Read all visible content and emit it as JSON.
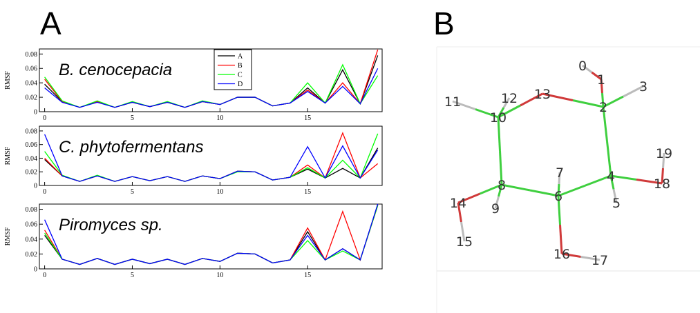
{
  "panel_labels": {
    "a": "A",
    "b": "B"
  },
  "chart_data": [
    {
      "type": "line",
      "title": "B. cenocepacia",
      "ylabel": "RMSF",
      "x": [
        0,
        1,
        2,
        3,
        4,
        5,
        6,
        7,
        8,
        9,
        10,
        11,
        12,
        13,
        14,
        15,
        16,
        17,
        18,
        19
      ],
      "xlim": [
        -0.3,
        19.25
      ],
      "xticks": [
        0,
        5,
        10,
        15
      ],
      "ylim": [
        0,
        0.087
      ],
      "yticks": [
        0,
        0.02,
        0.04,
        0.06,
        0.08
      ],
      "legend": "top-center",
      "series": [
        {
          "name": "A",
          "color": "#000000",
          "values": [
            0.038,
            0.014,
            0.006,
            0.014,
            0.006,
            0.013,
            0.007,
            0.013,
            0.006,
            0.014,
            0.01,
            0.02,
            0.02,
            0.008,
            0.012,
            0.033,
            0.012,
            0.058,
            0.011,
            0.078
          ]
        },
        {
          "name": "B",
          "color": "#ff0000",
          "values": [
            0.045,
            0.014,
            0.006,
            0.014,
            0.006,
            0.013,
            0.007,
            0.013,
            0.006,
            0.014,
            0.01,
            0.02,
            0.02,
            0.008,
            0.012,
            0.03,
            0.012,
            0.04,
            0.011,
            0.086
          ]
        },
        {
          "name": "C",
          "color": "#00ff00",
          "values": [
            0.048,
            0.015,
            0.006,
            0.015,
            0.006,
            0.014,
            0.007,
            0.014,
            0.006,
            0.015,
            0.01,
            0.02,
            0.02,
            0.008,
            0.012,
            0.04,
            0.012,
            0.065,
            0.011,
            0.05
          ]
        },
        {
          "name": "D",
          "color": "#0000ff",
          "values": [
            0.033,
            0.013,
            0.006,
            0.013,
            0.006,
            0.013,
            0.007,
            0.013,
            0.006,
            0.014,
            0.01,
            0.02,
            0.02,
            0.008,
            0.012,
            0.028,
            0.012,
            0.035,
            0.011,
            0.06
          ]
        }
      ]
    },
    {
      "type": "line",
      "title": "C. phytofermentans",
      "ylabel": "RMSF",
      "x": [
        0,
        1,
        2,
        3,
        4,
        5,
        6,
        7,
        8,
        9,
        10,
        11,
        12,
        13,
        14,
        15,
        16,
        17,
        18,
        19
      ],
      "xlim": [
        -0.3,
        19.25
      ],
      "xticks": [
        0,
        5,
        10,
        15
      ],
      "ylim": [
        0,
        0.087
      ],
      "yticks": [
        0,
        0.02,
        0.04,
        0.06,
        0.08
      ],
      "series": [
        {
          "color": "#000000",
          "values": [
            0.038,
            0.014,
            0.006,
            0.014,
            0.006,
            0.013,
            0.007,
            0.013,
            0.006,
            0.014,
            0.01,
            0.021,
            0.02,
            0.008,
            0.012,
            0.024,
            0.011,
            0.025,
            0.011,
            0.055
          ]
        },
        {
          "color": "#ff0000",
          "values": [
            0.04,
            0.014,
            0.006,
            0.014,
            0.006,
            0.013,
            0.007,
            0.013,
            0.006,
            0.014,
            0.01,
            0.021,
            0.02,
            0.008,
            0.012,
            0.03,
            0.011,
            0.077,
            0.011,
            0.032
          ]
        },
        {
          "color": "#00ff00",
          "values": [
            0.05,
            0.015,
            0.006,
            0.015,
            0.006,
            0.013,
            0.007,
            0.013,
            0.006,
            0.014,
            0.01,
            0.02,
            0.02,
            0.008,
            0.012,
            0.026,
            0.011,
            0.037,
            0.011,
            0.076
          ]
        },
        {
          "color": "#0000ff",
          "values": [
            0.075,
            0.014,
            0.006,
            0.014,
            0.006,
            0.013,
            0.007,
            0.013,
            0.006,
            0.014,
            0.01,
            0.021,
            0.02,
            0.008,
            0.012,
            0.057,
            0.011,
            0.058,
            0.011,
            0.052
          ]
        }
      ]
    },
    {
      "type": "line",
      "title": "Piromyces sp.",
      "ylabel": "RMSF",
      "x": [
        0,
        1,
        2,
        3,
        4,
        5,
        6,
        7,
        8,
        9,
        10,
        11,
        12,
        13,
        14,
        15,
        16,
        17,
        18,
        19
      ],
      "xlim": [
        -0.3,
        19.25
      ],
      "xticks": [
        0,
        5,
        10,
        15
      ],
      "ylim": [
        0,
        0.087
      ],
      "yticks": [
        0,
        0.02,
        0.04,
        0.06,
        0.08
      ],
      "series": [
        {
          "color": "#000000",
          "values": [
            0.045,
            0.013,
            0.006,
            0.014,
            0.006,
            0.013,
            0.007,
            0.013,
            0.006,
            0.014,
            0.01,
            0.021,
            0.02,
            0.008,
            0.012,
            0.05,
            0.012,
            0.027,
            0.012,
            0.086
          ]
        },
        {
          "color": "#ff0000",
          "values": [
            0.052,
            0.013,
            0.006,
            0.014,
            0.006,
            0.013,
            0.007,
            0.013,
            0.006,
            0.014,
            0.01,
            0.021,
            0.02,
            0.008,
            0.012,
            0.055,
            0.012,
            0.077,
            0.012,
            0.085
          ]
        },
        {
          "color": "#00ff00",
          "values": [
            0.048,
            0.013,
            0.006,
            0.014,
            0.006,
            0.013,
            0.007,
            0.013,
            0.006,
            0.014,
            0.01,
            0.021,
            0.02,
            0.008,
            0.012,
            0.038,
            0.012,
            0.024,
            0.012,
            0.085
          ]
        },
        {
          "color": "#0000ff",
          "values": [
            0.066,
            0.013,
            0.006,
            0.014,
            0.006,
            0.013,
            0.007,
            0.013,
            0.006,
            0.014,
            0.01,
            0.021,
            0.02,
            0.008,
            0.012,
            0.045,
            0.012,
            0.027,
            0.012,
            0.087
          ]
        }
      ]
    }
  ],
  "molecule": {
    "atoms": [
      "0",
      "1",
      "2",
      "3",
      "4",
      "5",
      "6",
      "7",
      "8",
      "9",
      "10",
      "11",
      "12",
      "13",
      "14",
      "15",
      "16",
      "17",
      "18",
      "19"
    ]
  }
}
